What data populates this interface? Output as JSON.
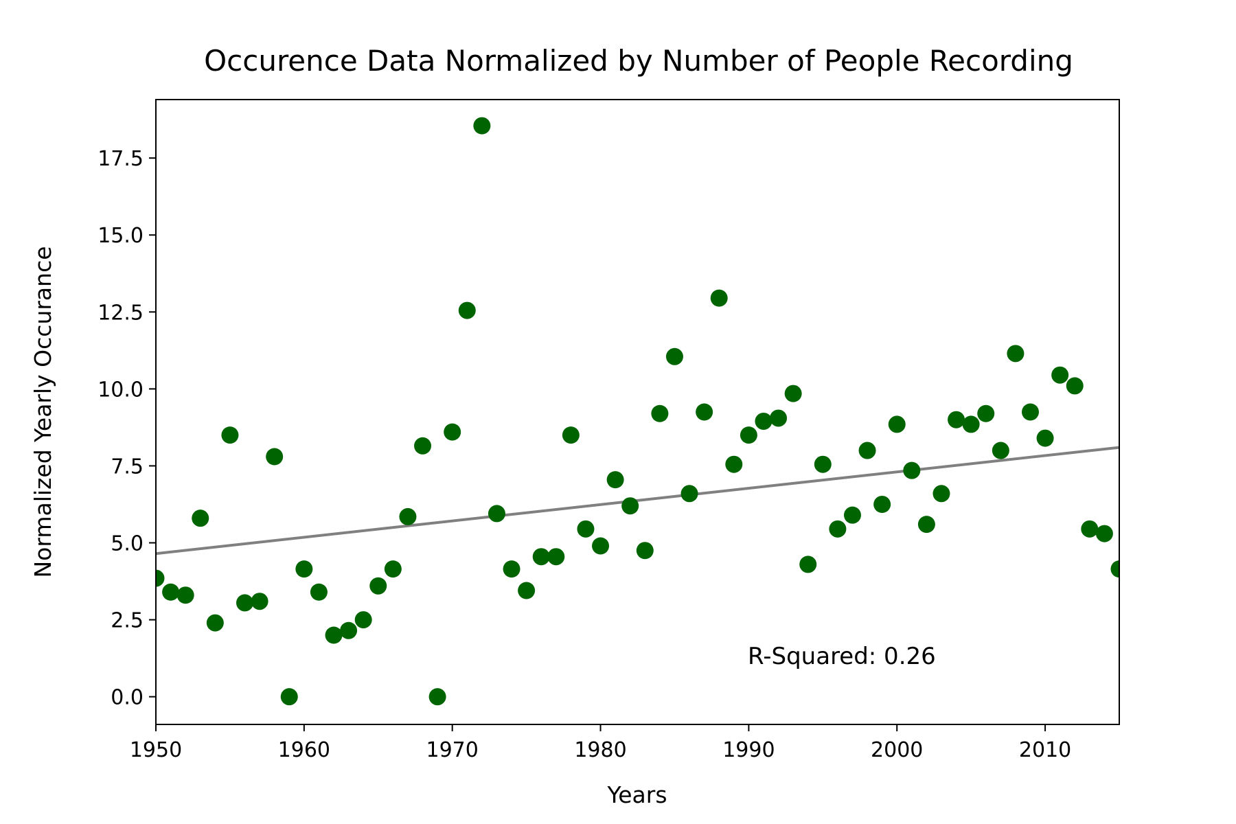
{
  "chart_data": {
    "type": "scatter",
    "title": "Occurence Data Normalized by Number of People Recording",
    "xlabel": "Years",
    "ylabel": "Normalized Yearly Occurance",
    "xlim": [
      1950,
      2015
    ],
    "ylim": [
      -0.9,
      19.4
    ],
    "xticks": [
      1950,
      1960,
      1970,
      1980,
      1990,
      2000,
      2010
    ],
    "xtick_labels": [
      "1950",
      "1960",
      "1970",
      "1980",
      "1990",
      "2000",
      "2010"
    ],
    "yticks": [
      0,
      2.5,
      5,
      7.5,
      10,
      12.5,
      15,
      17.5
    ],
    "ytick_labels": [
      "0.0",
      "2.5",
      "5.0",
      "7.5",
      "10.0",
      "12.5",
      "15.0",
      "17.5"
    ],
    "grid": false,
    "point_color": "#006400",
    "trend_color": "#808080",
    "points": [
      [
        1950,
        3.85
      ],
      [
        1951,
        3.4
      ],
      [
        1952,
        3.3
      ],
      [
        1953,
        5.8
      ],
      [
        1954,
        2.4
      ],
      [
        1955,
        8.5
      ],
      [
        1956,
        3.05
      ],
      [
        1957,
        3.1
      ],
      [
        1958,
        7.8
      ],
      [
        1959,
        0.0
      ],
      [
        1960,
        4.15
      ],
      [
        1961,
        3.4
      ],
      [
        1962,
        2.0
      ],
      [
        1963,
        2.15
      ],
      [
        1964,
        2.5
      ],
      [
        1965,
        3.6
      ],
      [
        1966,
        4.15
      ],
      [
        1967,
        5.85
      ],
      [
        1968,
        8.15
      ],
      [
        1969,
        0.0
      ],
      [
        1970,
        8.6
      ],
      [
        1971,
        12.55
      ],
      [
        1972,
        18.55
      ],
      [
        1973,
        5.95
      ],
      [
        1974,
        4.15
      ],
      [
        1975,
        3.45
      ],
      [
        1976,
        4.55
      ],
      [
        1977,
        4.55
      ],
      [
        1978,
        8.5
      ],
      [
        1979,
        5.45
      ],
      [
        1980,
        4.9
      ],
      [
        1981,
        7.05
      ],
      [
        1982,
        6.2
      ],
      [
        1983,
        4.75
      ],
      [
        1984,
        9.2
      ],
      [
        1985,
        11.05
      ],
      [
        1986,
        6.6
      ],
      [
        1987,
        9.25
      ],
      [
        1988,
        12.95
      ],
      [
        1989,
        7.55
      ],
      [
        1990,
        8.5
      ],
      [
        1991,
        8.95
      ],
      [
        1992,
        9.05
      ],
      [
        1993,
        9.85
      ],
      [
        1994,
        4.3
      ],
      [
        1995,
        7.55
      ],
      [
        1996,
        5.45
      ],
      [
        1997,
        5.9
      ],
      [
        1998,
        8.0
      ],
      [
        1999,
        6.25
      ],
      [
        2000,
        8.85
      ],
      [
        2001,
        7.35
      ],
      [
        2002,
        5.6
      ],
      [
        2003,
        6.6
      ],
      [
        2004,
        9.0
      ],
      [
        2005,
        8.85
      ],
      [
        2006,
        9.2
      ],
      [
        2007,
        8.0
      ],
      [
        2008,
        11.15
      ],
      [
        2009,
        9.25
      ],
      [
        2010,
        8.4
      ],
      [
        2011,
        10.45
      ],
      [
        2012,
        10.1
      ],
      [
        2013,
        5.45
      ],
      [
        2014,
        5.3
      ],
      [
        2015,
        4.15
      ]
    ],
    "trend_line": [
      [
        1950,
        4.65
      ],
      [
        2015,
        8.1
      ]
    ],
    "annotation": "R-Squared: 0.26"
  }
}
